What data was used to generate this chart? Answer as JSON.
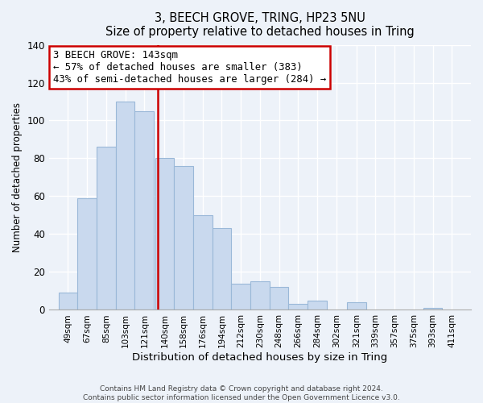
{
  "title": "3, BEECH GROVE, TRING, HP23 5NU",
  "subtitle": "Size of property relative to detached houses in Tring",
  "xlabel": "Distribution of detached houses by size in Tring",
  "ylabel": "Number of detached properties",
  "bar_color": "#c9d9ee",
  "bar_edge_color": "#9ab8d8",
  "bins": [
    49,
    67,
    85,
    103,
    121,
    140,
    158,
    176,
    194,
    212,
    230,
    248,
    266,
    284,
    302,
    321,
    339,
    357,
    375,
    393,
    411
  ],
  "bin_labels": [
    "49sqm",
    "67sqm",
    "85sqm",
    "103sqm",
    "121sqm",
    "140sqm",
    "158sqm",
    "176sqm",
    "194sqm",
    "212sqm",
    "230sqm",
    "248sqm",
    "266sqm",
    "284sqm",
    "302sqm",
    "321sqm",
    "339sqm",
    "357sqm",
    "375sqm",
    "393sqm",
    "411sqm"
  ],
  "values": [
    9,
    59,
    86,
    110,
    105,
    80,
    76,
    50,
    43,
    14,
    15,
    12,
    3,
    5,
    0,
    4,
    0,
    0,
    0,
    1,
    0
  ],
  "ylim": [
    0,
    140
  ],
  "property_size": 143,
  "vline_color": "#cc0000",
  "annotation_title": "3 BEECH GROVE: 143sqm",
  "annotation_line1": "← 57% of detached houses are smaller (383)",
  "annotation_line2": "43% of semi-detached houses are larger (284) →",
  "annotation_box_color": "#ffffff",
  "annotation_box_edge": "#cc0000",
  "footer1": "Contains HM Land Registry data © Crown copyright and database right 2024.",
  "footer2": "Contains public sector information licensed under the Open Government Licence v3.0.",
  "background_color": "#edf2f9",
  "grid_color": "#ffffff",
  "yticks": [
    0,
    20,
    40,
    60,
    80,
    100,
    120,
    140
  ]
}
